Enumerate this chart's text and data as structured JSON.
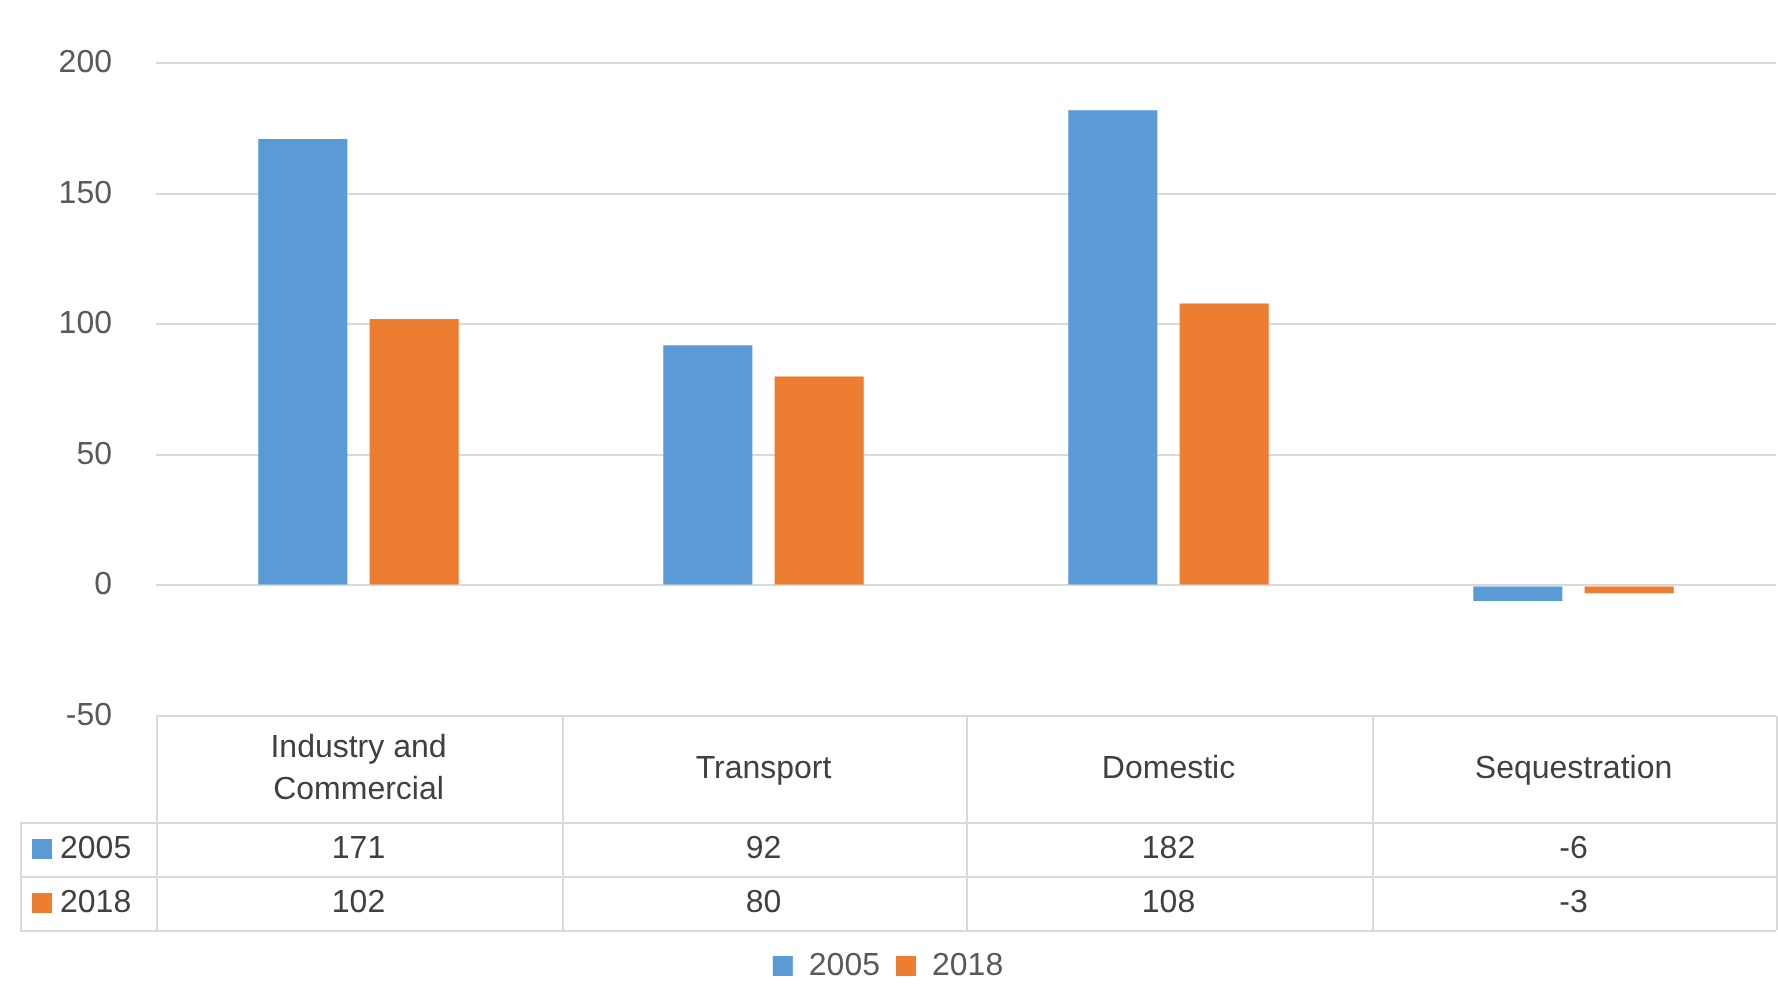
{
  "chart_data": {
    "type": "bar",
    "categories": [
      "Industry and Commercial",
      "Transport",
      "Domestic",
      "Sequestration"
    ],
    "series": [
      {
        "name": "2005",
        "color": "#5b9bd5",
        "values": [
          171,
          92,
          182,
          -6
        ]
      },
      {
        "name": "2018",
        "color": "#ed7d31",
        "values": [
          102,
          80,
          108,
          -3
        ]
      }
    ],
    "ylim": [
      -50,
      200
    ],
    "yticks": [
      -50,
      0,
      50,
      100,
      150,
      200
    ],
    "grid": "y",
    "legend": "bottom",
    "data_labels": true
  }
}
